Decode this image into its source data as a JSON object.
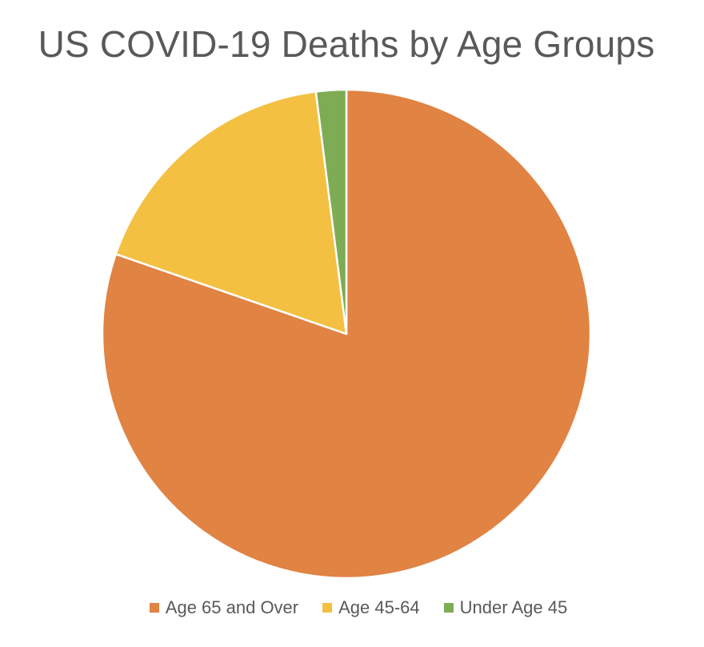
{
  "chart_data": {
    "type": "pie",
    "title": "US COVID-19 Deaths by Age Groups",
    "categories": [
      "Age 65 and Over",
      "Age 45-64",
      "Under Age 45"
    ],
    "values": [
      80.3,
      17.7,
      2.0
    ],
    "colors": [
      "#E08343",
      "#F4C042",
      "#7EAC55"
    ],
    "start_angle_deg": 0,
    "direction": "clockwise",
    "legend_position": "bottom"
  }
}
